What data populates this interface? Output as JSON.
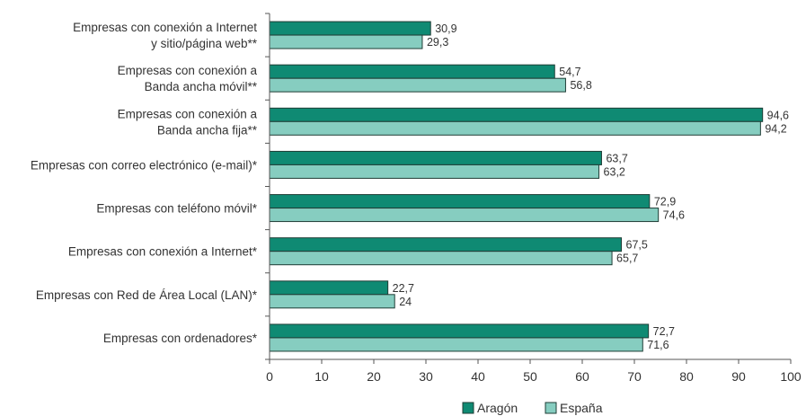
{
  "chart_data": {
    "type": "bar",
    "orientation": "horizontal",
    "categories": [
      [
        "Empresas con conexión a Internet",
        "y sitio/página web**"
      ],
      [
        "Empresas con conexión a",
        "Banda ancha móvil**"
      ],
      [
        "Empresas con conexión a",
        "Banda ancha fija**"
      ],
      [
        "Empresas con correo electrónico (e-mail)*"
      ],
      [
        "Empresas con teléfono móvil*"
      ],
      [
        "Empresas con conexión a Internet*"
      ],
      [
        "Empresas con Red de Área Local (LAN)*"
      ],
      [
        "Empresas con ordenadores*"
      ]
    ],
    "series": [
      {
        "name": "Aragón",
        "color": "#0f8a73",
        "values": [
          30.9,
          54.7,
          94.6,
          63.7,
          72.9,
          67.5,
          22.7,
          72.7
        ],
        "labels": [
          "30,9",
          "54,7",
          "94,6",
          "63,7",
          "72,9",
          "67,5",
          "22,7",
          "72,7"
        ]
      },
      {
        "name": "España",
        "color": "#86cdc0",
        "values": [
          29.3,
          56.8,
          94.2,
          63.2,
          74.6,
          65.7,
          24,
          71.6
        ],
        "labels": [
          "29,3",
          "56,8",
          "94,2",
          "63,2",
          "74,6",
          "65,7",
          "24",
          "71,6"
        ]
      }
    ],
    "xlim": [
      0,
      100
    ],
    "ticks": [
      "0",
      "10",
      "20",
      "30",
      "40",
      "50",
      "60",
      "70",
      "80",
      "90",
      "100"
    ],
    "grid": false,
    "legend_position": "bottom"
  }
}
